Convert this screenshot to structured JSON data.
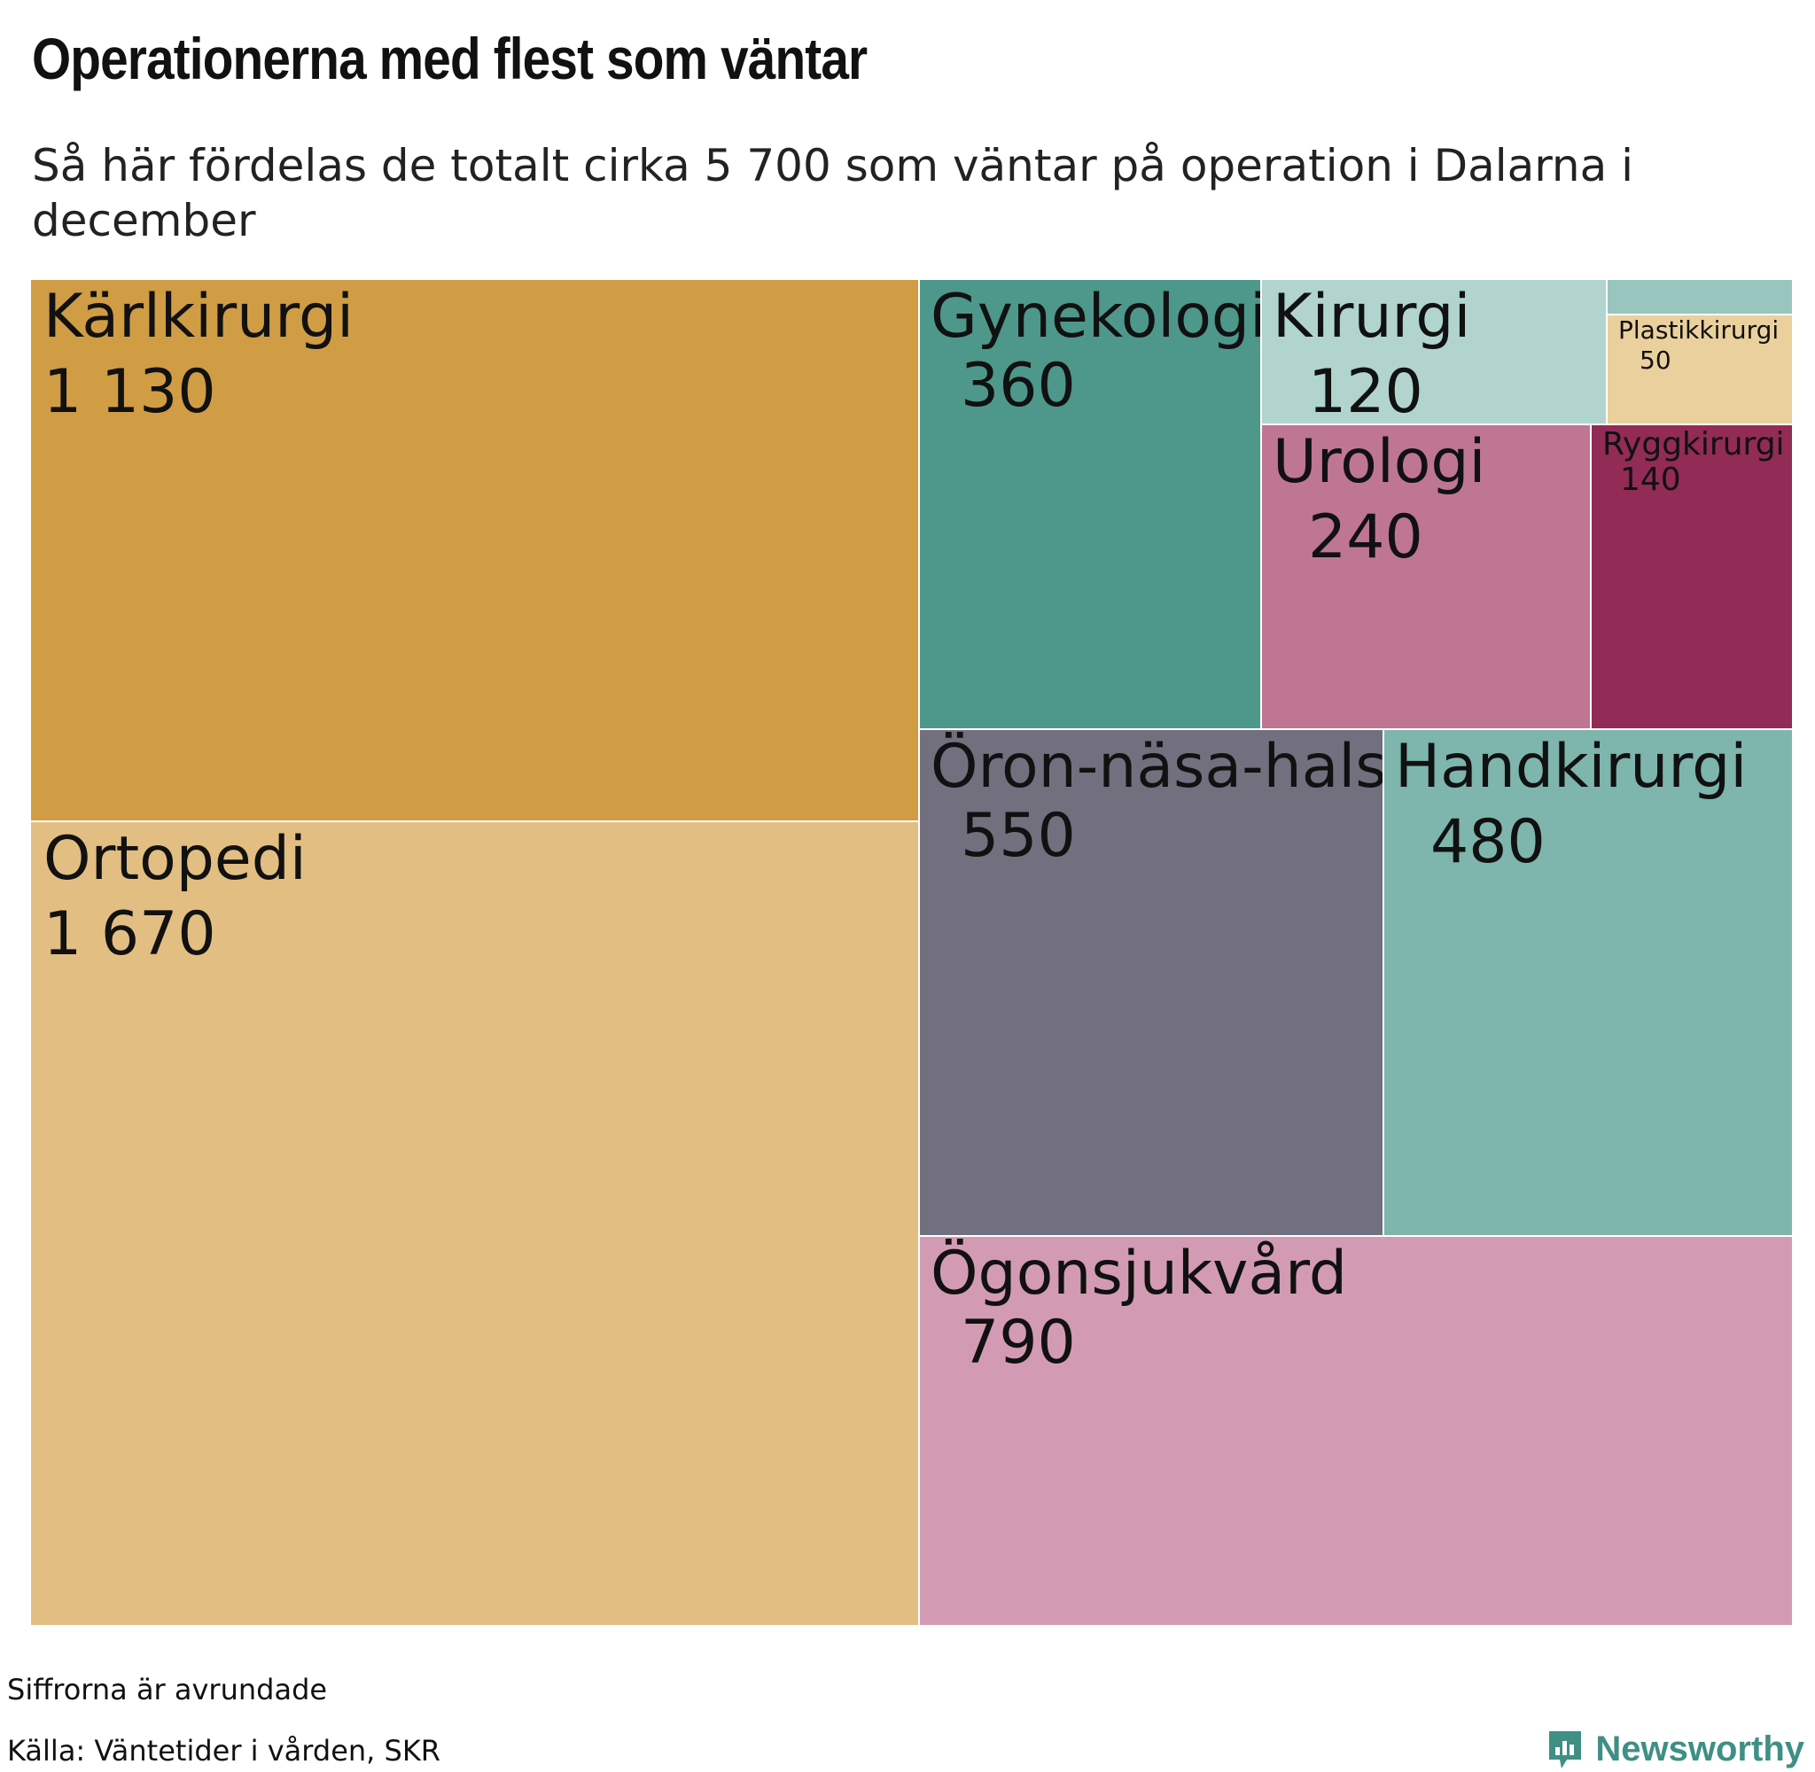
{
  "header": {
    "title": "Operationerna med flest som väntar",
    "subtitle": "Så här fördelas de totalt cirka 5 700 som väntar på operation i Dalarna i december"
  },
  "chart_data": {
    "type": "treemap",
    "items": [
      {
        "name": "Kärlkirurgi",
        "value_label": "1 130",
        "value": 1130,
        "color": "#d09d45"
      },
      {
        "name": "Ortopedi",
        "value_label": "1 670",
        "value": 1670,
        "color": "#e2be82"
      },
      {
        "name": "Gynekologi",
        "value_label": "360",
        "value": 360,
        "color": "#4e978b"
      },
      {
        "name": "Kirurgi",
        "value_label": "120",
        "value": 120,
        "color": "#b1d5ce"
      },
      {
        "name": "",
        "value_label": "",
        "value": 10,
        "color": "#98c6bf"
      },
      {
        "name": "Plastikkirurgi",
        "value_label": "50",
        "value": 50,
        "color": "#ead09d"
      },
      {
        "name": "Urologi",
        "value_label": "240",
        "value": 240,
        "color": "#bf7692"
      },
      {
        "name": "Ryggkirurgi",
        "value_label": "140",
        "value": 140,
        "color": "#922b56"
      },
      {
        "name": "Öron-näsa-hals",
        "value_label": "550",
        "value": 550,
        "color": "#72707e"
      },
      {
        "name": "Handkirurgi",
        "value_label": "480",
        "value": 480,
        "color": "#7eb5ad"
      },
      {
        "name": "Ögonsjukvård",
        "value_label": "790",
        "value": 790,
        "color": "#d39bb3"
      }
    ]
  },
  "footer": {
    "note": "Siffrorna är avrundade",
    "source": "Källa: Väntetider i vården, SKR",
    "brand": "Newsworthy",
    "brand_icon": "newsworthy-logo-icon",
    "brand_color": "#3f8f85"
  }
}
